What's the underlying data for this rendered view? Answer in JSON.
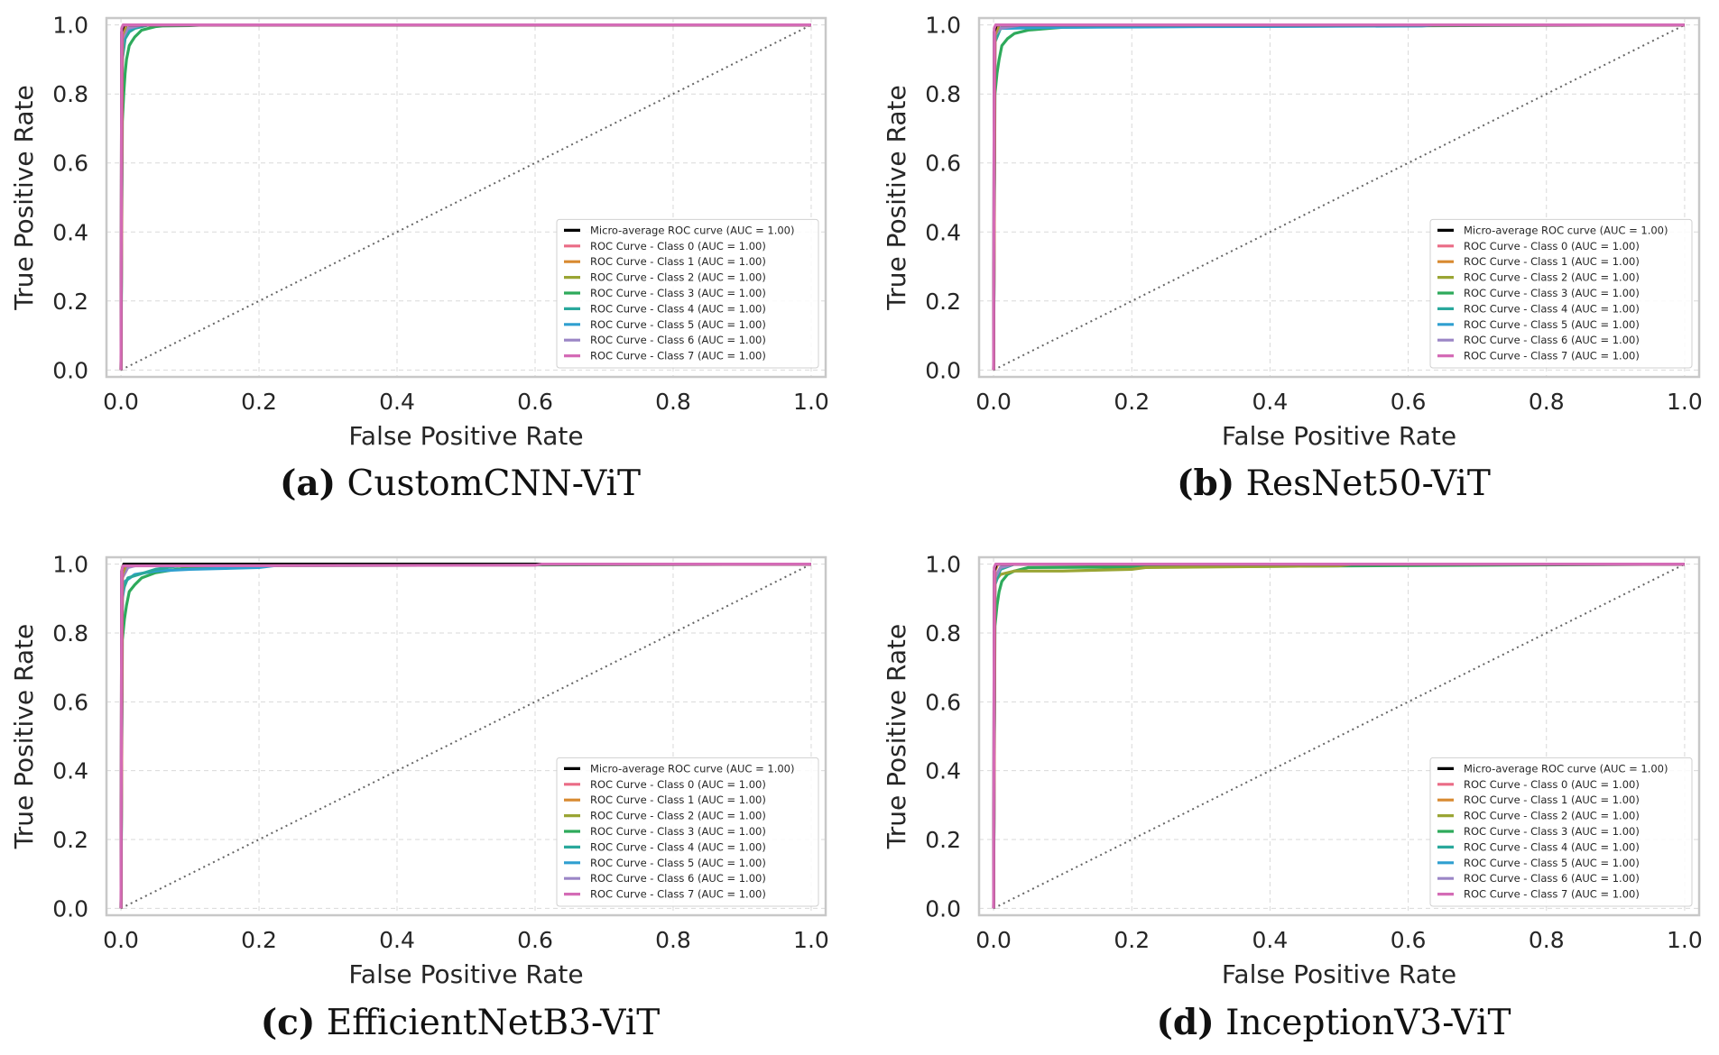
{
  "chart_data": [
    {
      "type": "line",
      "panel": "a",
      "caption_label": "(a)",
      "caption_name": "CustomCNN-ViT",
      "xlabel": "False Positive Rate",
      "ylabel": "True Positive Rate",
      "xlim": [
        0.0,
        1.0
      ],
      "ylim": [
        0.0,
        1.0
      ],
      "xticks": [
        "0.0",
        "0.2",
        "0.4",
        "0.6",
        "0.8",
        "1.0"
      ],
      "yticks": [
        "0.0",
        "0.2",
        "0.4",
        "0.6",
        "0.8",
        "1.0"
      ],
      "grid": true,
      "legend_position": "lower-right",
      "diagonal": true,
      "legend": [
        "Micro-average ROC curve (AUC = 1.00)",
        "ROC Curve - Class 0 (AUC = 1.00)",
        "ROC Curve - Class 1 (AUC = 1.00)",
        "ROC Curve - Class 2 (AUC = 1.00)",
        "ROC Curve - Class 3 (AUC = 1.00)",
        "ROC Curve - Class 4 (AUC = 1.00)",
        "ROC Curve - Class 5 (AUC = 1.00)",
        "ROC Curve - Class 6 (AUC = 1.00)",
        "ROC Curve - Class 7 (AUC = 1.00)"
      ],
      "series": [
        {
          "name": "Class 3",
          "color": "#2eaa5b",
          "x": [
            0,
            0.002,
            0.004,
            0.006,
            0.008,
            0.01,
            0.012,
            0.015,
            0.02,
            0.025,
            0.03,
            0.04,
            0.05,
            0.06,
            0.1,
            0.12,
            1.0
          ],
          "y": [
            0,
            0.72,
            0.8,
            0.86,
            0.9,
            0.92,
            0.94,
            0.95,
            0.965,
            0.975,
            0.985,
            0.99,
            0.995,
            0.997,
            0.998,
            1.0,
            1.0
          ]
        },
        {
          "name": "Class 4",
          "color": "#2aa89c",
          "x": [
            0,
            0.002,
            0.006,
            0.012,
            0.02,
            0.04,
            1.0
          ],
          "y": [
            0,
            0.9,
            0.96,
            0.98,
            0.99,
            1.0,
            1.0
          ]
        },
        {
          "name": "Class 5",
          "color": "#2f9fd0",
          "x": [
            0,
            0.002,
            0.006,
            0.015,
            0.03,
            1.0
          ],
          "y": [
            0,
            0.94,
            0.98,
            0.99,
            1.0,
            1.0
          ]
        },
        {
          "name": "Class 6",
          "color": "#9b86c6",
          "x": [
            0,
            0.002,
            0.01,
            0.03,
            1.0
          ],
          "y": [
            0,
            0.96,
            0.99,
            1.0,
            1.0
          ]
        },
        {
          "name": "Class 2",
          "color": "#9aa534",
          "x": [
            0,
            0.002,
            0.008,
            1.0
          ],
          "y": [
            0,
            0.97,
            1.0,
            1.0
          ]
        },
        {
          "name": "Class 1",
          "color": "#d88a30",
          "x": [
            0,
            0.002,
            0.006,
            1.0
          ],
          "y": [
            0,
            0.98,
            1.0,
            1.0
          ]
        },
        {
          "name": "Class 0",
          "color": "#ea6c86",
          "x": [
            0,
            0.002,
            0.005,
            1.0
          ],
          "y": [
            0,
            0.99,
            1.0,
            1.0
          ]
        },
        {
          "name": "Micro-average",
          "color": "#000000",
          "x": [
            0,
            0.001,
            0.004,
            1.0
          ],
          "y": [
            0,
            0.98,
            1.0,
            1.0
          ]
        },
        {
          "name": "Class 7",
          "color": "#d46bb6",
          "x": [
            0,
            0.001,
            0.003,
            1.0
          ],
          "y": [
            0,
            0.99,
            1.0,
            1.0
          ]
        }
      ]
    },
    {
      "type": "line",
      "panel": "b",
      "caption_label": "(b)",
      "caption_name": "ResNet50-ViT",
      "xlabel": "False Positive Rate",
      "ylabel": "True Positive Rate",
      "xlim": [
        0.0,
        1.0
      ],
      "ylim": [
        0.0,
        1.0
      ],
      "xticks": [
        "0.0",
        "0.2",
        "0.4",
        "0.6",
        "0.8",
        "1.0"
      ],
      "yticks": [
        "0.0",
        "0.2",
        "0.4",
        "0.6",
        "0.8",
        "1.0"
      ],
      "grid": true,
      "legend_position": "lower-right",
      "diagonal": true,
      "legend": [
        "Micro-average ROC curve (AUC = 1.00)",
        "ROC Curve - Class 0 (AUC = 1.00)",
        "ROC Curve - Class 1 (AUC = 1.00)",
        "ROC Curve - Class 2 (AUC = 1.00)",
        "ROC Curve - Class 3 (AUC = 1.00)",
        "ROC Curve - Class 4 (AUC = 1.00)",
        "ROC Curve - Class 5 (AUC = 1.00)",
        "ROC Curve - Class 6 (AUC = 1.00)",
        "ROC Curve - Class 7 (AUC = 1.00)"
      ],
      "series": [
        {
          "name": "Class 3",
          "color": "#2eaa5b",
          "x": [
            0,
            0.002,
            0.005,
            0.008,
            0.012,
            0.02,
            0.03,
            0.05,
            0.08,
            0.1,
            0.2,
            1.0
          ],
          "y": [
            0,
            0.8,
            0.86,
            0.9,
            0.94,
            0.96,
            0.975,
            0.985,
            0.99,
            0.993,
            0.995,
            1.0
          ]
        },
        {
          "name": "Class 5",
          "color": "#2f9fd0",
          "x": [
            0,
            0.002,
            0.01,
            0.1,
            0.3,
            0.62,
            0.64,
            1.0
          ],
          "y": [
            0,
            0.96,
            0.99,
            0.993,
            0.995,
            0.997,
            1.0,
            1.0
          ]
        },
        {
          "name": "Class 4",
          "color": "#2aa89c",
          "x": [
            0,
            0.002,
            0.01,
            0.03,
            1.0
          ],
          "y": [
            0,
            0.95,
            0.99,
            1.0,
            1.0
          ]
        },
        {
          "name": "Class 6",
          "color": "#9b86c6",
          "x": [
            0,
            0.002,
            0.01,
            0.04,
            1.0
          ],
          "y": [
            0,
            0.97,
            0.99,
            1.0,
            1.0
          ]
        },
        {
          "name": "Class 2",
          "color": "#9aa534",
          "x": [
            0,
            0.002,
            0.008,
            1.0
          ],
          "y": [
            0,
            0.97,
            1.0,
            1.0
          ]
        },
        {
          "name": "Class 1",
          "color": "#d88a30",
          "x": [
            0,
            0.002,
            0.006,
            1.0
          ],
          "y": [
            0,
            0.98,
            1.0,
            1.0
          ]
        },
        {
          "name": "Class 0",
          "color": "#ea6c86",
          "x": [
            0,
            0.002,
            0.005,
            1.0
          ],
          "y": [
            0,
            0.99,
            1.0,
            1.0
          ]
        },
        {
          "name": "Micro-average",
          "color": "#000000",
          "x": [
            0,
            0.001,
            0.004,
            1.0
          ],
          "y": [
            0,
            0.98,
            1.0,
            1.0
          ]
        },
        {
          "name": "Class 7",
          "color": "#d46bb6",
          "x": [
            0,
            0.001,
            0.003,
            1.0
          ],
          "y": [
            0,
            0.99,
            1.0,
            1.0
          ]
        }
      ]
    },
    {
      "type": "line",
      "panel": "c",
      "caption_label": "(c)",
      "caption_name": "EfficientNetB3-ViT",
      "xlabel": "False Positive Rate",
      "ylabel": "True Positive Rate",
      "xlim": [
        0.0,
        1.0
      ],
      "ylim": [
        0.0,
        1.0
      ],
      "xticks": [
        "0.0",
        "0.2",
        "0.4",
        "0.6",
        "0.8",
        "1.0"
      ],
      "yticks": [
        "0.0",
        "0.2",
        "0.4",
        "0.6",
        "0.8",
        "1.0"
      ],
      "grid": true,
      "legend_position": "lower-right",
      "diagonal": true,
      "legend": [
        "Micro-average ROC curve (AUC = 1.00)",
        "ROC Curve - Class 0 (AUC = 1.00)",
        "ROC Curve - Class 1 (AUC = 1.00)",
        "ROC Curve - Class 2 (AUC = 1.00)",
        "ROC Curve - Class 3 (AUC = 1.00)",
        "ROC Curve - Class 4 (AUC = 1.00)",
        "ROC Curve - Class 5 (AUC = 1.00)",
        "ROC Curve - Class 6 (AUC = 1.00)",
        "ROC Curve - Class 7 (AUC = 1.00)"
      ],
      "series": [
        {
          "name": "Class 3",
          "color": "#2eaa5b",
          "x": [
            0,
            0.002,
            0.005,
            0.008,
            0.012,
            0.02,
            0.03,
            0.05,
            0.08,
            0.1,
            0.15,
            1.0
          ],
          "y": [
            0,
            0.78,
            0.84,
            0.88,
            0.92,
            0.94,
            0.96,
            0.975,
            0.985,
            0.99,
            0.995,
            1.0
          ]
        },
        {
          "name": "Class 5",
          "color": "#2f9fd0",
          "x": [
            0,
            0.002,
            0.006,
            0.02,
            0.05,
            0.1,
            0.2,
            0.24,
            1.0
          ],
          "y": [
            0,
            0.9,
            0.95,
            0.97,
            0.98,
            0.985,
            0.99,
            1.0,
            1.0
          ]
        },
        {
          "name": "Class 4",
          "color": "#2aa89c",
          "x": [
            0,
            0.002,
            0.01,
            0.05,
            0.1,
            1.0
          ],
          "y": [
            0,
            0.92,
            0.96,
            0.985,
            1.0,
            1.0
          ]
        },
        {
          "name": "Class 6",
          "color": "#9b86c6",
          "x": [
            0,
            0.002,
            0.01,
            0.03,
            1.0
          ],
          "y": [
            0,
            0.96,
            0.99,
            1.0,
            1.0
          ]
        },
        {
          "name": "Class 2",
          "color": "#9aa534",
          "x": [
            0,
            0.002,
            0.008,
            1.0
          ],
          "y": [
            0,
            0.97,
            1.0,
            1.0
          ]
        },
        {
          "name": "Class 1",
          "color": "#d88a30",
          "x": [
            0,
            0.002,
            0.006,
            1.0
          ],
          "y": [
            0,
            0.98,
            1.0,
            1.0
          ]
        },
        {
          "name": "Class 0",
          "color": "#ea6c86",
          "x": [
            0,
            0.002,
            0.005,
            1.0
          ],
          "y": [
            0,
            0.99,
            1.0,
            1.0
          ]
        },
        {
          "name": "Micro-average",
          "color": "#000000",
          "x": [
            0,
            0.001,
            0.004,
            1.0
          ],
          "y": [
            0,
            0.98,
            1.0,
            1.0
          ]
        },
        {
          "name": "Class 7",
          "color": "#d46bb6",
          "x": [
            0,
            0.001,
            0.003,
            0.6,
            0.61,
            1.0
          ],
          "y": [
            0,
            0.98,
            0.995,
            0.997,
            1.0,
            1.0
          ]
        }
      ]
    },
    {
      "type": "line",
      "panel": "d",
      "caption_label": "(d)",
      "caption_name": "InceptionV3-ViT",
      "xlabel": "False Positive Rate",
      "ylabel": "True Positive Rate",
      "xlim": [
        0.0,
        1.0
      ],
      "ylim": [
        0.0,
        1.0
      ],
      "xticks": [
        "0.0",
        "0.2",
        "0.4",
        "0.6",
        "0.8",
        "1.0"
      ],
      "yticks": [
        "0.0",
        "0.2",
        "0.4",
        "0.6",
        "0.8",
        "1.0"
      ],
      "grid": true,
      "legend_position": "lower-right",
      "diagonal": true,
      "legend": [
        "Micro-average ROC curve (AUC = 1.00)",
        "ROC Curve - Class 0 (AUC = 1.00)",
        "ROC Curve - Class 1 (AUC = 1.00)",
        "ROC Curve - Class 2 (AUC = 1.00)",
        "ROC Curve - Class 3 (AUC = 1.00)",
        "ROC Curve - Class 4 (AUC = 1.00)",
        "ROC Curve - Class 5 (AUC = 1.00)",
        "ROC Curve - Class 6 (AUC = 1.00)",
        "ROC Curve - Class 7 (AUC = 1.00)"
      ],
      "series": [
        {
          "name": "Class 3",
          "color": "#2eaa5b",
          "x": [
            0,
            0.002,
            0.005,
            0.008,
            0.012,
            0.02,
            0.03,
            0.05,
            1.0
          ],
          "y": [
            0,
            0.82,
            0.88,
            0.92,
            0.95,
            0.97,
            0.98,
            0.99,
            1.0
          ]
        },
        {
          "name": "Class 2",
          "color": "#9aa534",
          "x": [
            0,
            0.002,
            0.01,
            0.03,
            0.1,
            0.2,
            0.22,
            0.5,
            0.52,
            1.0
          ],
          "y": [
            0,
            0.95,
            0.97,
            0.98,
            0.98,
            0.985,
            0.99,
            0.995,
            1.0,
            1.0
          ]
        },
        {
          "name": "Class 4",
          "color": "#2aa89c",
          "x": [
            0,
            0.002,
            0.01,
            0.03,
            1.0
          ],
          "y": [
            0,
            0.94,
            0.985,
            1.0,
            1.0
          ]
        },
        {
          "name": "Class 5",
          "color": "#2f9fd0",
          "x": [
            0,
            0.002,
            0.01,
            0.02,
            1.0
          ],
          "y": [
            0,
            0.96,
            0.99,
            1.0,
            1.0
          ]
        },
        {
          "name": "Class 6",
          "color": "#9b86c6",
          "x": [
            0,
            0.002,
            0.01,
            0.03,
            1.0
          ],
          "y": [
            0,
            0.96,
            0.99,
            1.0,
            1.0
          ]
        },
        {
          "name": "Class 1",
          "color": "#d88a30",
          "x": [
            0,
            0.002,
            0.006,
            1.0
          ],
          "y": [
            0,
            0.98,
            1.0,
            1.0
          ]
        },
        {
          "name": "Class 0",
          "color": "#ea6c86",
          "x": [
            0,
            0.002,
            0.005,
            1.0
          ],
          "y": [
            0,
            0.99,
            1.0,
            1.0
          ]
        },
        {
          "name": "Micro-average",
          "color": "#000000",
          "x": [
            0,
            0.001,
            0.004,
            1.0
          ],
          "y": [
            0,
            0.98,
            1.0,
            1.0
          ]
        },
        {
          "name": "Class 7",
          "color": "#d46bb6",
          "x": [
            0,
            0.001,
            0.003,
            1.0
          ],
          "y": [
            0,
            0.99,
            1.0,
            1.0
          ]
        }
      ]
    }
  ],
  "legend_colors": [
    "#000000",
    "#ea6c86",
    "#d88a30",
    "#9aa534",
    "#2eaa5b",
    "#2aa89c",
    "#2f9fd0",
    "#9b86c6",
    "#d46bb6"
  ]
}
